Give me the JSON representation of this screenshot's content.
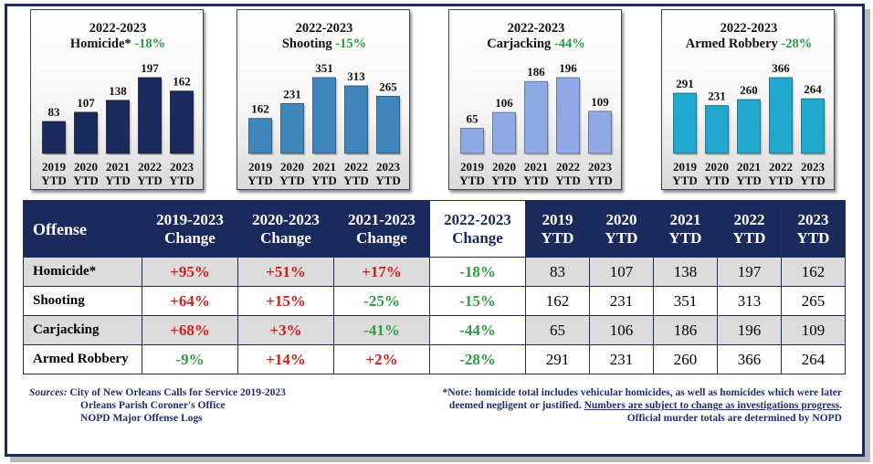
{
  "chart_data": [
    {
      "type": "bar",
      "title": "2022-2023",
      "subtitle": "Homicide*",
      "change": "-18%",
      "categories": [
        "2019 YTD",
        "2020 YTD",
        "2021 YTD",
        "2022 YTD",
        "2023 YTD"
      ],
      "values": [
        83,
        107,
        138,
        197,
        162
      ],
      "color": "#1b2a5c",
      "grid": false
    },
    {
      "type": "bar",
      "title": "2022-2023",
      "subtitle": "Shooting",
      "change": "-15%",
      "categories": [
        "2019 YTD",
        "2020 YTD",
        "2021 YTD",
        "2022 YTD",
        "2023 YTD"
      ],
      "values": [
        162,
        231,
        351,
        313,
        265
      ],
      "color": "#3f86bd",
      "grid": false
    },
    {
      "type": "bar",
      "title": "2022-2023",
      "subtitle": "Carjacking",
      "change": "-44%",
      "categories": [
        "2019 YTD",
        "2020 YTD",
        "2021 YTD",
        "2022 YTD",
        "2023 YTD"
      ],
      "values": [
        65,
        106,
        186,
        196,
        109
      ],
      "color": "#8ea9e3",
      "grid": false
    },
    {
      "type": "bar",
      "title": "2022-2023",
      "subtitle": "Armed Robbery",
      "change": "-28%",
      "categories": [
        "2019 YTD",
        "2020 YTD",
        "2021 YTD",
        "2022 YTD",
        "2023 YTD"
      ],
      "values": [
        291,
        231,
        260,
        366,
        264
      ],
      "color": "#21a8cf",
      "grid": false
    }
  ],
  "table": {
    "headers": [
      [
        "Offense"
      ],
      [
        "2019-2023",
        "Change"
      ],
      [
        "2020-2023",
        "Change"
      ],
      [
        "2021-2023",
        "Change"
      ],
      [
        "2022-2023",
        "Change"
      ],
      [
        "2019",
        "YTD"
      ],
      [
        "2020",
        "YTD"
      ],
      [
        "2021",
        "YTD"
      ],
      [
        "2022",
        "YTD"
      ],
      [
        "2023",
        "YTD"
      ]
    ],
    "rows": [
      {
        "offense": "Homicide*",
        "changes": [
          "+95%",
          "+51%",
          "+17%",
          "-18%"
        ],
        "ytd": [
          "83",
          "107",
          "138",
          "197",
          "162"
        ]
      },
      {
        "offense": "Shooting",
        "changes": [
          "+64%",
          "+15%",
          "-25%",
          "-15%"
        ],
        "ytd": [
          "162",
          "231",
          "351",
          "313",
          "265"
        ]
      },
      {
        "offense": "Carjacking",
        "changes": [
          "+68%",
          "+3%",
          "-41%",
          "-44%"
        ],
        "ytd": [
          "65",
          "106",
          "186",
          "196",
          "109"
        ]
      },
      {
        "offense": "Armed Robbery",
        "changes": [
          "-9%",
          "+14%",
          "+2%",
          "-28%"
        ],
        "ytd": [
          "291",
          "231",
          "260",
          "366",
          "264"
        ]
      }
    ]
  },
  "colors": {
    "increase": "#d21d1d",
    "decrease": "#2e9c45",
    "header_bg": "#1a2a5d",
    "footer_text": "#1f2f72"
  },
  "sources": {
    "label": "Sources:",
    "lines": [
      "City of New Orleans Calls for Service 2019-2023",
      "Orleans Parish Coroner's Office",
      "NOPD Major Offense Logs"
    ]
  },
  "note": {
    "line1": "*Note: homicide total includes vehicular homicides, as well as homicides which were later",
    "line2_plain": "deemed negligent or justified. ",
    "line2_underlined": "Numbers are subject to change as investigations progress",
    "line2_end": ".",
    "line3": "Official murder totals are determined by NOPD"
  }
}
